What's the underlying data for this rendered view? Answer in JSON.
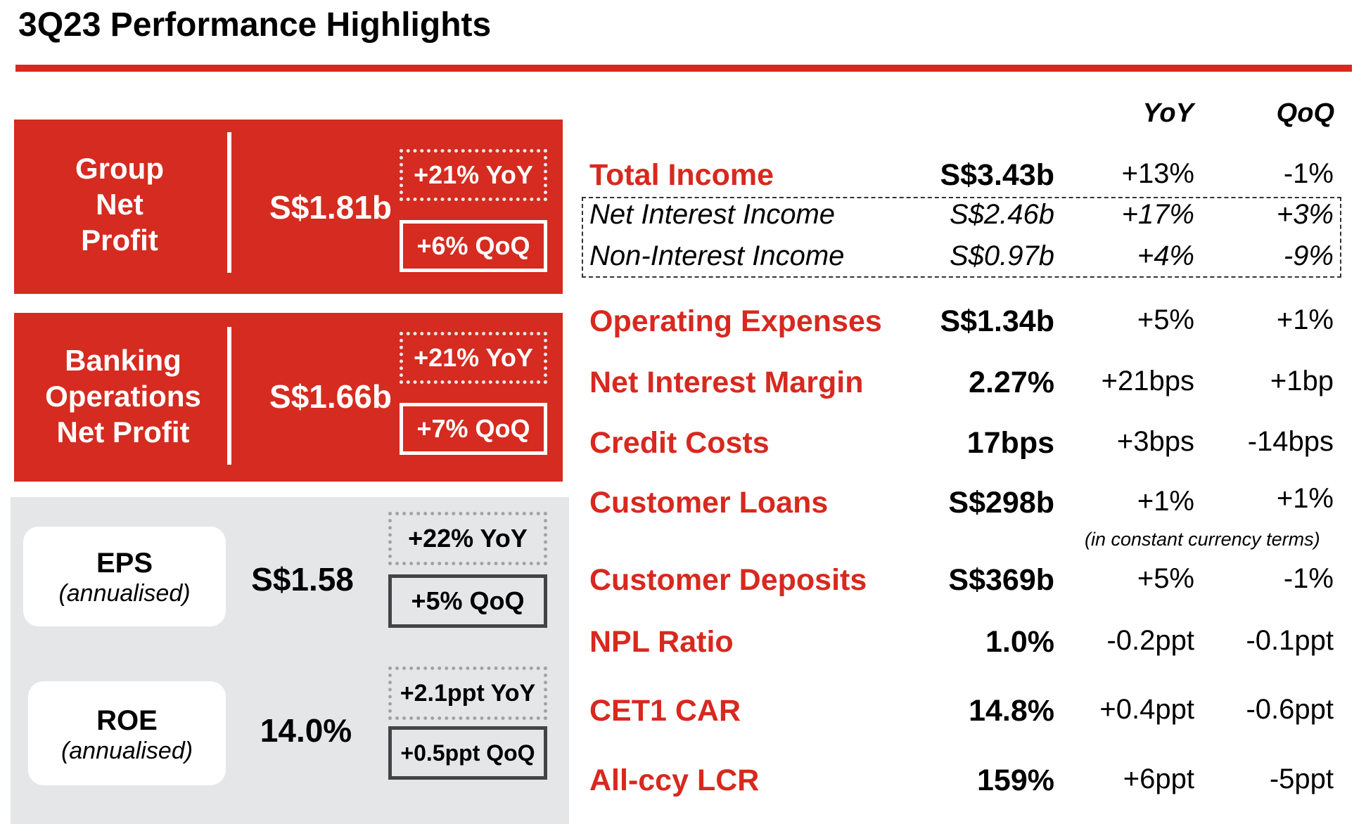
{
  "title": "3Q23 Performance Highlights",
  "colors": {
    "brand_red": "#d7291f",
    "grey_panel": "#e5e6e8"
  },
  "left": {
    "group_net_profit": {
      "label_lines": [
        "Group",
        "Net",
        "Profit"
      ],
      "value": "S$1.81b",
      "yoy": "+21% YoY",
      "qoq": "+6% QoQ"
    },
    "banking_ops_net_profit": {
      "label_lines": [
        "Banking",
        "Operations",
        "Net Profit"
      ],
      "value": "S$1.66b",
      "yoy": "+21% YoY",
      "qoq": "+7% QoQ"
    },
    "eps": {
      "title": "EPS",
      "subtitle": "(annualised)",
      "value": "S$1.58",
      "yoy": "+22% YoY",
      "qoq": "+5% QoQ"
    },
    "roe": {
      "title": "ROE",
      "subtitle": "(annualised)",
      "value": "14.0%",
      "yoy": "+2.1ppt YoY",
      "qoq": "+0.5ppt QoQ"
    }
  },
  "table": {
    "headers": {
      "yoy": "YoY",
      "qoq": "QoQ"
    },
    "rows": [
      {
        "label": "Total Income",
        "value": "S$3.43b",
        "yoy": "+13%",
        "qoq": "-1%"
      },
      {
        "label": "Net Interest Income",
        "value": "S$2.46b",
        "yoy": "+17%",
        "qoq": "+3%"
      },
      {
        "label": "Non-Interest Income",
        "value": "S$0.97b",
        "yoy": "+4%",
        "qoq": "-9%"
      },
      {
        "label": "Operating Expenses",
        "value": "S$1.34b",
        "yoy": "+5%",
        "qoq": "+1%"
      },
      {
        "label": "Net Interest Margin",
        "value": "2.27%",
        "yoy": "+21bps",
        "qoq": "+1bp"
      },
      {
        "label": "Credit Costs",
        "value": "17bps",
        "yoy": "+3bps",
        "qoq": "-14bps"
      },
      {
        "label": "Customer Loans",
        "value": "S$298b",
        "yoy": "+1%",
        "qoq": "+1%"
      },
      {
        "label": "Customer Deposits",
        "value": "S$369b",
        "yoy": "+5%",
        "qoq": "-1%"
      },
      {
        "label": "NPL Ratio",
        "value": "1.0%",
        "yoy": "-0.2ppt",
        "qoq": "-0.1ppt"
      },
      {
        "label": "CET1 CAR",
        "value": "14.8%",
        "yoy": "+0.4ppt",
        "qoq": "-0.6ppt"
      },
      {
        "label": "All-ccy LCR",
        "value": "159%",
        "yoy": "+6ppt",
        "qoq": "-5ppt"
      }
    ],
    "loans_note": "(in constant currency terms)"
  }
}
